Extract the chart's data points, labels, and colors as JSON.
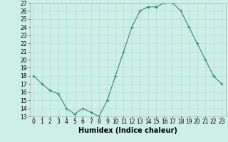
{
  "x": [
    0,
    1,
    2,
    3,
    4,
    5,
    6,
    7,
    8,
    9,
    10,
    11,
    12,
    13,
    14,
    15,
    16,
    17,
    18,
    19,
    20,
    21,
    22,
    23
  ],
  "y": [
    18,
    17,
    16.2,
    15.8,
    14,
    13.3,
    14,
    13.5,
    13,
    15,
    18,
    21,
    24,
    26,
    26.5,
    26.5,
    27,
    27,
    26,
    24,
    22,
    20,
    18,
    17
  ],
  "line_color": "#2e8b7a",
  "marker": "+",
  "background_color": "#ceeee8",
  "grid_color": "#b0ddd8",
  "xlabel": "Humidex (Indice chaleur)",
  "xlim": [
    -0.5,
    23.5
  ],
  "ylim": [
    13,
    27
  ],
  "yticks": [
    13,
    14,
    15,
    16,
    17,
    18,
    19,
    20,
    21,
    22,
    23,
    24,
    25,
    26,
    27
  ],
  "xticks": [
    0,
    1,
    2,
    3,
    4,
    5,
    6,
    7,
    8,
    9,
    10,
    11,
    12,
    13,
    14,
    15,
    16,
    17,
    18,
    19,
    20,
    21,
    22,
    23
  ],
  "xlabel_fontsize": 7,
  "tick_fontsize": 5.5,
  "line_width": 0.8,
  "marker_size": 3,
  "marker_edge_width": 0.8
}
